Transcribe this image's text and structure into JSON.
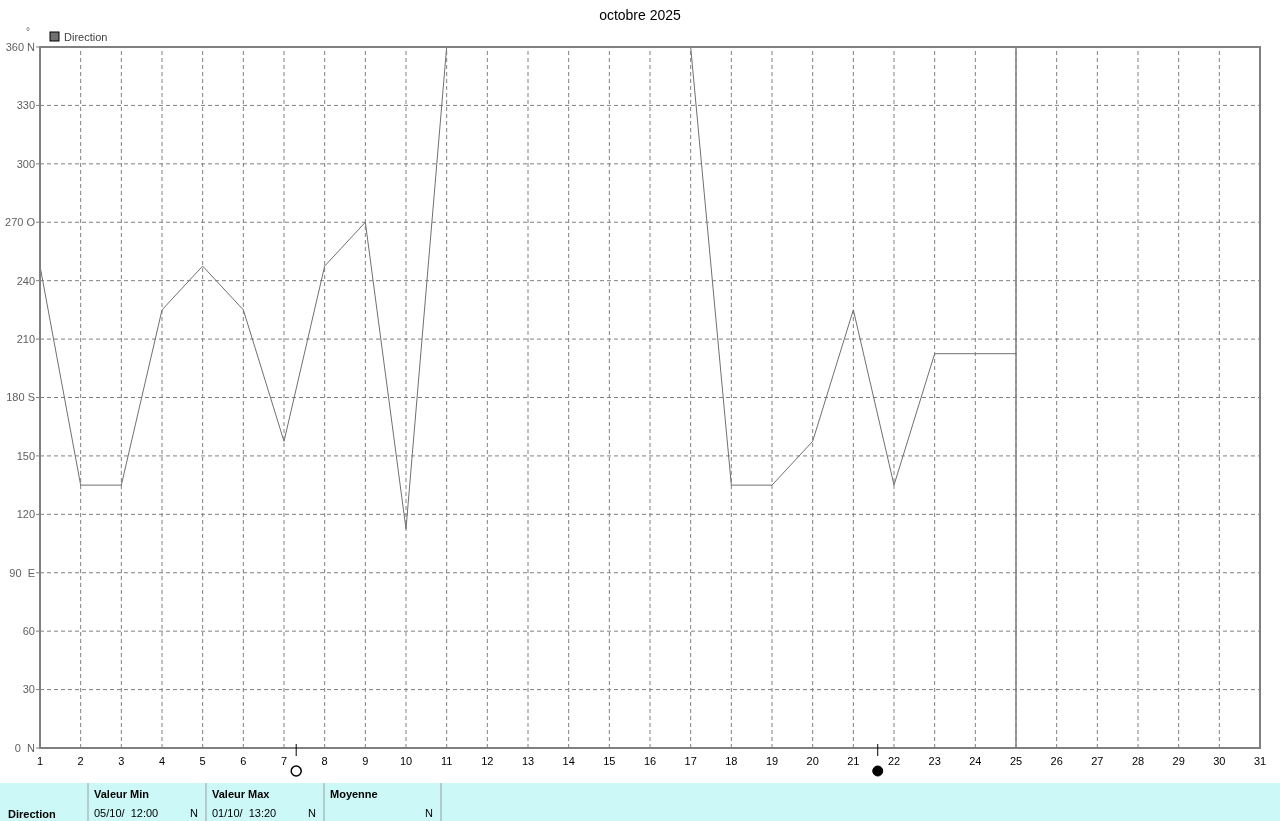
{
  "chart_data": {
    "type": "line",
    "title": "octobre 2025",
    "ylabel": "°",
    "x": [
      1,
      2,
      3,
      4,
      5,
      6,
      7,
      8,
      9,
      10,
      11,
      12,
      13,
      14,
      15,
      16,
      17,
      18,
      19,
      20,
      21,
      22,
      23,
      24,
      25
    ],
    "series": [
      {
        "name": "Direction",
        "color": "#707070",
        "values": [
          247.5,
          135,
          135,
          225,
          247.5,
          225,
          157.5,
          247.5,
          270,
          112.5,
          360,
          360,
          360,
          360,
          360,
          360,
          360,
          135,
          135,
          157.5,
          225,
          135,
          202.5,
          202.5,
          202.5
        ]
      }
    ],
    "xlim": [
      1,
      31
    ],
    "xticks": [
      1,
      2,
      3,
      4,
      5,
      6,
      7,
      8,
      9,
      10,
      11,
      12,
      13,
      14,
      15,
      16,
      17,
      18,
      19,
      20,
      21,
      22,
      23,
      24,
      25,
      26,
      27,
      28,
      29,
      30,
      31
    ],
    "ylim": [
      0,
      360
    ],
    "yticks": [
      {
        "value": 0,
        "label": "0  N"
      },
      30,
      60,
      {
        "value": 90,
        "label": "90  E"
      },
      120,
      150,
      {
        "value": 180,
        "label": "180 S"
      },
      210,
      240,
      {
        "value": 270,
        "label": "270 O"
      },
      300,
      330,
      {
        "value": 360,
        "label": "360 N"
      }
    ],
    "ref_lines": [
      {
        "axis": "x",
        "value": 25,
        "color": "#808080"
      }
    ],
    "grid": true,
    "legend": "top left",
    "marker": "none",
    "line_style": "solid",
    "annotations": [
      "Direction",
      "Valeur Min",
      "05/10/  12:00",
      "N",
      "Valeur Max",
      "01/10/  13:20",
      "N",
      "Moyenne",
      "N"
    ]
  }
}
